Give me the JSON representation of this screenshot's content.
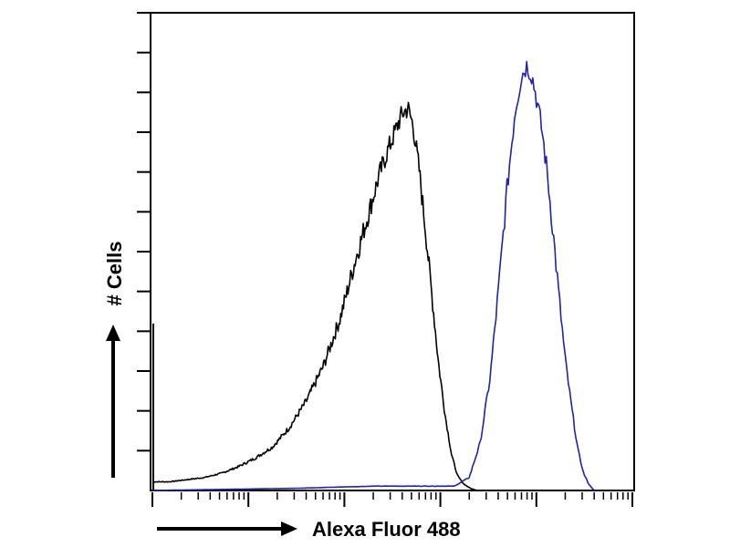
{
  "chart_data": {
    "type": "line",
    "xlabel": "Alexa Fluor 488",
    "ylabel": "# Cells",
    "x_scale": "log",
    "xlim": [
      1,
      100000
    ],
    "ylim": [
      0,
      220
    ],
    "grid": false,
    "legend": "none",
    "series": [
      {
        "color": "#000000",
        "points": [
          [
            1.0,
            4
          ],
          [
            1.5,
            4
          ],
          [
            2.3,
            5
          ],
          [
            3.5,
            6
          ],
          [
            5.3,
            8
          ],
          [
            7.9,
            11
          ],
          [
            11.9,
            15
          ],
          [
            17.8,
            20
          ],
          [
            26.7,
            29
          ],
          [
            40,
            41
          ],
          [
            60,
            57
          ],
          [
            90,
            79
          ],
          [
            130,
            106
          ],
          [
            180,
            128
          ],
          [
            230,
            145
          ],
          [
            280,
            156
          ],
          [
            330,
            164
          ],
          [
            370,
            170
          ],
          [
            410,
            174
          ],
          [
            460,
            176
          ],
          [
            520,
            168
          ],
          [
            600,
            148
          ],
          [
            700,
            120
          ],
          [
            820,
            89
          ],
          [
            960,
            58
          ],
          [
            1120,
            35
          ],
          [
            1300,
            17
          ],
          [
            1500,
            7
          ],
          [
            1750,
            3
          ],
          [
            2050,
            1
          ],
          [
            2400,
            0
          ]
        ]
      },
      {
        "color": "#2222aa",
        "points": [
          [
            1.0,
            0
          ],
          [
            30,
            1
          ],
          [
            200,
            2
          ],
          [
            700,
            2
          ],
          [
            1400,
            2
          ],
          [
            2000,
            6
          ],
          [
            2600,
            22
          ],
          [
            3300,
            52
          ],
          [
            4100,
            96
          ],
          [
            5000,
            141
          ],
          [
            6000,
            175
          ],
          [
            7000,
            191
          ],
          [
            8000,
            196
          ],
          [
            9000,
            191
          ],
          [
            10000,
            181
          ],
          [
            11500,
            165
          ],
          [
            13000,
            146
          ],
          [
            15000,
            118
          ],
          [
            17500,
            86
          ],
          [
            20000,
            60
          ],
          [
            23000,
            40
          ],
          [
            27000,
            19
          ],
          [
            31000,
            8
          ],
          [
            35000,
            3
          ],
          [
            40000,
            0
          ]
        ]
      }
    ]
  }
}
